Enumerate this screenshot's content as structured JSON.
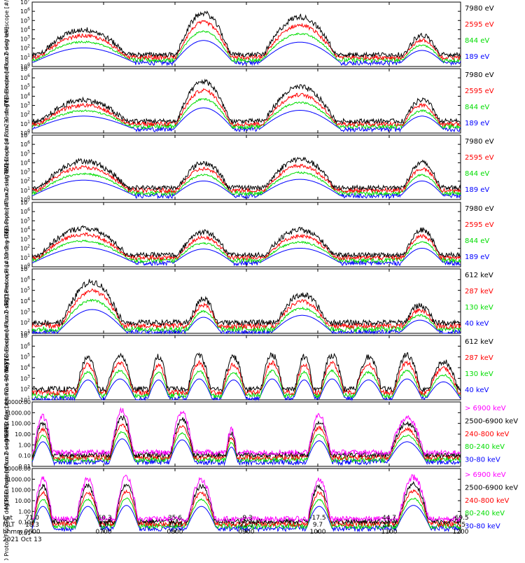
{
  "colors": {
    "black": "#000000",
    "red": "#ff0000",
    "green": "#00dd00",
    "blue": "#0000ff",
    "magenta": "#ff00ff"
  },
  "footer": {
    "row_labels": [
      "Lat",
      "MLT",
      "hhmm"
    ],
    "ticks": [
      {
        "lat": "71.0",
        "mlt": "18.3",
        "hhmm": "0600"
      },
      {
        "lat": "-60.3",
        "mlt": "1.6",
        "hhmm": "0700"
      },
      {
        "lat": "35.6",
        "mlt": "10.9",
        "hhmm": "0800"
      },
      {
        "lat": "-9.3",
        "mlt": "22.5",
        "hhmm": "0900"
      },
      {
        "lat": "-17.5",
        "mlt": "9.7",
        "hhmm": "1000"
      },
      {
        "lat": "44.7",
        "mlt": "21.2",
        "hhmm": "1100"
      },
      {
        "lat": "-69.5",
        "mlt": "7.5",
        "hhmm": "1200"
      }
    ],
    "date": "2021 Oct 13"
  },
  "chart_data": [
    {
      "type": "line",
      "ylabel": "TED Electron Flux 0 deg telescope [#/cm2-s-str-eV]",
      "yscale": "log",
      "ylim": [
        1,
        10000000
      ],
      "yticks": [
        "10^0",
        "10^1",
        "10^2",
        "10^3",
        "10^4",
        "10^5",
        "10^6",
        "10^7"
      ],
      "x_range": [
        "0600",
        "1200"
      ],
      "series": [
        {
          "name": "7980 eV",
          "color": "black"
        },
        {
          "name": "2595 eV",
          "color": "red"
        },
        {
          "name": "844 eV",
          "color": "green"
        },
        {
          "name": "189 eV",
          "color": "blue"
        }
      ],
      "events": [
        {
          "x": [
            0.0,
            0.24
          ],
          "peak": 4.0
        },
        {
          "x": [
            0.33,
            0.47
          ],
          "peak": 5.8
        },
        {
          "x": [
            0.53,
            0.72
          ],
          "peak": 5.4
        },
        {
          "x": [
            0.86,
            0.96
          ],
          "peak": 3.4
        }
      ]
    },
    {
      "type": "line",
      "ylabel": "TED Electron Flux 30 deg telescope [#/cm2-s-str-eV]",
      "yscale": "log",
      "ylim": [
        1,
        10000000
      ],
      "yticks": [
        "10^0",
        "10^1",
        "10^2",
        "10^3",
        "10^4",
        "10^5",
        "10^6",
        "10^7"
      ],
      "x_range": [
        "0600",
        "1200"
      ],
      "series": [
        {
          "name": "7980 eV",
          "color": "black"
        },
        {
          "name": "2595 eV",
          "color": "red"
        },
        {
          "name": "844 eV",
          "color": "green"
        },
        {
          "name": "189 eV",
          "color": "blue"
        }
      ],
      "events": [
        {
          "x": [
            0.0,
            0.24
          ],
          "peak": 3.6
        },
        {
          "x": [
            0.33,
            0.47
          ],
          "peak": 5.6
        },
        {
          "x": [
            0.53,
            0.72
          ],
          "peak": 5.0
        },
        {
          "x": [
            0.86,
            0.96
          ],
          "peak": 3.6
        }
      ]
    },
    {
      "type": "line",
      "ylabel": "TED Proton Flux 0 deg telescope [#/cm2-s-str-eV]",
      "yscale": "log",
      "ylim": [
        1,
        10000000
      ],
      "yticks": [
        "10^0",
        "10^1",
        "10^2",
        "10^3",
        "10^4",
        "10^5",
        "10^6",
        "10^7"
      ],
      "x_range": [
        "0600",
        "1200"
      ],
      "series": [
        {
          "name": "7980 eV",
          "color": "black"
        },
        {
          "name": "2595 eV",
          "color": "red"
        },
        {
          "name": "844 eV",
          "color": "green"
        },
        {
          "name": "189 eV",
          "color": "blue"
        }
      ],
      "events": [
        {
          "x": [
            0.0,
            0.24
          ],
          "peak": 4.2
        },
        {
          "x": [
            0.33,
            0.47
          ],
          "peak": 4.0
        },
        {
          "x": [
            0.53,
            0.72
          ],
          "peak": 4.4
        },
        {
          "x": [
            0.86,
            0.96
          ],
          "peak": 4.0
        }
      ]
    },
    {
      "type": "line",
      "ylabel": "TED Proton Flux 30 deg telescope [#/cm2-s-str-eV]",
      "yscale": "log",
      "ylim": [
        1,
        10000000
      ],
      "yticks": [
        "10^0",
        "10^1",
        "10^2",
        "10^3",
        "10^4",
        "10^5",
        "10^6",
        "10^7"
      ],
      "x_range": [
        "0600",
        "1200"
      ],
      "series": [
        {
          "name": "7980 eV",
          "color": "black"
        },
        {
          "name": "2595 eV",
          "color": "red"
        },
        {
          "name": "844 eV",
          "color": "green"
        },
        {
          "name": "189 eV",
          "color": "blue"
        }
      ],
      "events": [
        {
          "x": [
            0.0,
            0.24
          ],
          "peak": 4.2
        },
        {
          "x": [
            0.33,
            0.47
          ],
          "peak": 3.8
        },
        {
          "x": [
            0.53,
            0.72
          ],
          "peak": 4.0
        },
        {
          "x": [
            0.86,
            0.96
          ],
          "peak": 4.0
        }
      ]
    },
    {
      "type": "line",
      "ylabel": "MEPED Electron Flux 0 deg telescope [#/cm2-s-str]",
      "yscale": "log",
      "ylim": [
        10,
        10000000
      ],
      "yticks": [
        "10^1",
        "10^2",
        "10^3",
        "10^4",
        "10^5",
        "10^6",
        "10^7"
      ],
      "x_range": [
        "0600",
        "1200"
      ],
      "series": [
        {
          "name": "612 keV",
          "color": "black"
        },
        {
          "name": "287 keV",
          "color": "red"
        },
        {
          "name": "130 keV",
          "color": "green"
        },
        {
          "name": "40 keV",
          "color": "blue"
        }
      ],
      "events": [
        {
          "x": [
            0.06,
            0.22
          ],
          "peak": 5.8
        },
        {
          "x": [
            0.36,
            0.44
          ],
          "peak": 4.2
        },
        {
          "x": [
            0.56,
            0.7
          ],
          "peak": 4.6
        },
        {
          "x": [
            0.86,
            0.95
          ],
          "peak": 3.6
        }
      ]
    },
    {
      "type": "line",
      "ylabel": "MEPED Electron Flux 90 deg telescope [#/cm2-s-str]",
      "yscale": "log",
      "ylim": [
        10,
        10000000
      ],
      "yticks": [
        "10^1",
        "10^2",
        "10^3",
        "10^4",
        "10^5",
        "10^6",
        "10^7"
      ],
      "x_range": [
        "0600",
        "1200"
      ],
      "series": [
        {
          "name": "612 keV",
          "color": "black"
        },
        {
          "name": "287 keV",
          "color": "red"
        },
        {
          "name": "130 keV",
          "color": "green"
        },
        {
          "name": "40 keV",
          "color": "blue"
        }
      ],
      "events": [
        {
          "x": [
            0.1,
            0.16
          ],
          "peak": 5.0
        },
        {
          "x": [
            0.17,
            0.24
          ],
          "peak": 5.2
        },
        {
          "x": [
            0.27,
            0.32
          ],
          "peak": 5.0
        },
        {
          "x": [
            0.36,
            0.42
          ],
          "peak": 5.2
        },
        {
          "x": [
            0.44,
            0.5
          ],
          "peak": 5.0
        },
        {
          "x": [
            0.53,
            0.59
          ],
          "peak": 5.2
        },
        {
          "x": [
            0.61,
            0.66
          ],
          "peak": 5.0
        },
        {
          "x": [
            0.67,
            0.73
          ],
          "peak": 5.2
        },
        {
          "x": [
            0.75,
            0.82
          ],
          "peak": 5.0
        },
        {
          "x": [
            0.84,
            0.91
          ],
          "peak": 5.2
        },
        {
          "x": [
            0.92,
            1.0
          ],
          "peak": 4.6
        }
      ]
    },
    {
      "type": "line",
      "ylabel": "MEPED Proton Flux 0 deg telescope [#/cm2-s-str-keV]",
      "yscale": "log",
      "ylim": [
        0.01,
        10000
      ],
      "yticks": [
        "0.01",
        "0.10",
        "1.00",
        "10.00",
        "100.00",
        "1000.00",
        "10000.00"
      ],
      "x_range": [
        "0600",
        "1200"
      ],
      "series": [
        {
          "name": "> 6900 keV",
          "color": "magenta"
        },
        {
          "name": "2500-6900 keV",
          "color": "black"
        },
        {
          "name": "240-800 keV",
          "color": "red"
        },
        {
          "name": "80-240 keV",
          "color": "green"
        },
        {
          "name": "30-80 keV",
          "color": "blue"
        }
      ],
      "events": [
        {
          "x": [
            0.0,
            0.05
          ],
          "peak": 2.6
        },
        {
          "x": [
            0.18,
            0.24
          ],
          "peak": 3.2
        },
        {
          "x": [
            0.32,
            0.38
          ],
          "peak": 3.0
        },
        {
          "x": [
            0.45,
            0.48
          ],
          "peak": 1.5
        },
        {
          "x": [
            0.64,
            0.7
          ],
          "peak": 2.8
        },
        {
          "x": [
            0.83,
            0.92
          ],
          "peak": 2.6
        }
      ]
    },
    {
      "type": "line",
      "ylabel": "MEPED Proton Flux 90 deg telescope [#/cm2-s-str-keV]",
      "yscale": "log",
      "ylim": [
        0.01,
        10000
      ],
      "yticks": [
        "0.01",
        "0.10",
        "1.00",
        "10.00",
        "100.00",
        "1000.00",
        "10000.00"
      ],
      "x_range": [
        "0600",
        "1200"
      ],
      "series": [
        {
          "name": "> 6900 keV",
          "color": "magenta"
        },
        {
          "name": "2500-6900 keV",
          "color": "black"
        },
        {
          "name": "240-800 keV",
          "color": "red"
        },
        {
          "name": "80-240 keV",
          "color": "green"
        },
        {
          "name": "30-80 keV",
          "color": "blue"
        }
      ],
      "events": [
        {
          "x": [
            0.0,
            0.05
          ],
          "peak": 3.0
        },
        {
          "x": [
            0.1,
            0.16
          ],
          "peak": 3.0
        },
        {
          "x": [
            0.19,
            0.25
          ],
          "peak": 3.2
        },
        {
          "x": [
            0.36,
            0.43
          ],
          "peak": 3.0
        },
        {
          "x": [
            0.64,
            0.7
          ],
          "peak": 3.0
        },
        {
          "x": [
            0.85,
            0.93
          ],
          "peak": 3.2
        }
      ]
    }
  ]
}
